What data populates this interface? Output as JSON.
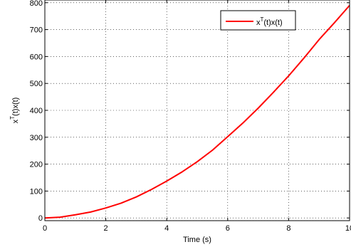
{
  "chart_data": {
    "type": "line",
    "title": "",
    "xlabel": "Time (s)",
    "ylabel": {
      "base": "x",
      "sup": "T",
      "rest": "(t)x(t)"
    },
    "xlim": [
      0,
      10
    ],
    "ylim": [
      -10,
      810
    ],
    "xticks": [
      0,
      2,
      4,
      6,
      8,
      10
    ],
    "xtick_labels": [
      "0",
      "2",
      "4",
      "6",
      "8",
      "10"
    ],
    "yticks": [
      0,
      100,
      200,
      300,
      400,
      500,
      600,
      700,
      800
    ],
    "ytick_labels": [
      "0",
      "100",
      "200",
      "300",
      "400",
      "500",
      "600",
      "700",
      "800"
    ],
    "grid": true,
    "legend": {
      "position": "top-right",
      "entries": [
        {
          "base": "x",
          "sup": "T",
          "rest": "(t)x(t)"
        }
      ]
    },
    "series": [
      {
        "name": "x^T(t)x(t)",
        "color": "#ff0000",
        "x": [
          0,
          0.5,
          1,
          1.5,
          2,
          2.5,
          3,
          3.5,
          4,
          4.5,
          5,
          5.5,
          6,
          6.5,
          7,
          7.5,
          8,
          8.5,
          9,
          9.5,
          10
        ],
        "y": [
          0,
          3,
          12,
          22,
          37,
          55,
          78,
          106,
          137,
          171,
          209,
          252,
          302,
          353,
          408,
          467,
          528,
          594,
          663,
          725,
          790
        ]
      }
    ]
  }
}
